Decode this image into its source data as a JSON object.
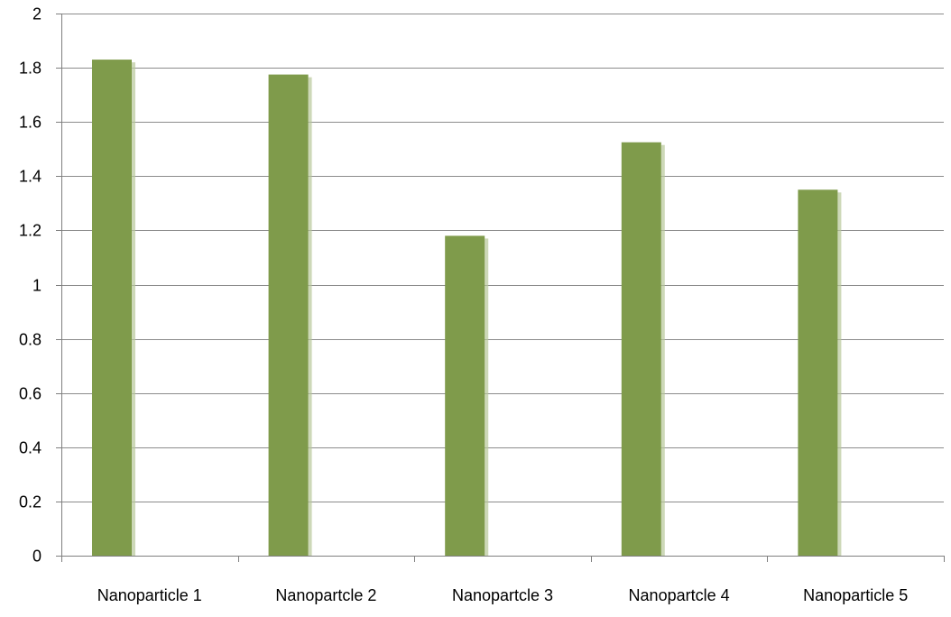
{
  "chart_data": {
    "type": "bar",
    "title": "",
    "xlabel": "",
    "ylabel": "",
    "categories": [
      "Nanoparticle 1",
      "Nanopartcle 2",
      "Nanopartcle 3",
      "Nanopartcle 4",
      "Nanoparticle 5"
    ],
    "series": [
      {
        "values": [
          1.83,
          1.775,
          1.18,
          1.525,
          1.35
        ],
        "color": "#7f9b4b"
      }
    ],
    "ylim": [
      0,
      2
    ],
    "yticks": [
      0,
      0.2,
      0.4,
      0.6,
      0.8,
      1,
      1.2,
      1.4,
      1.6,
      1.8,
      2
    ],
    "ytick_labels": [
      "0",
      "0.2",
      "0.4",
      "0.6",
      "0.8",
      "1",
      "1.2",
      "1.4",
      "1.6",
      "1.8",
      "2"
    ],
    "grid": true,
    "legend": "none",
    "colors": {
      "bar": "#7f9b4b",
      "bar_shadow": "#b8c79a",
      "grid": "#8c8c8c",
      "axis": "#7f7f7f",
      "text": "#000000"
    }
  }
}
